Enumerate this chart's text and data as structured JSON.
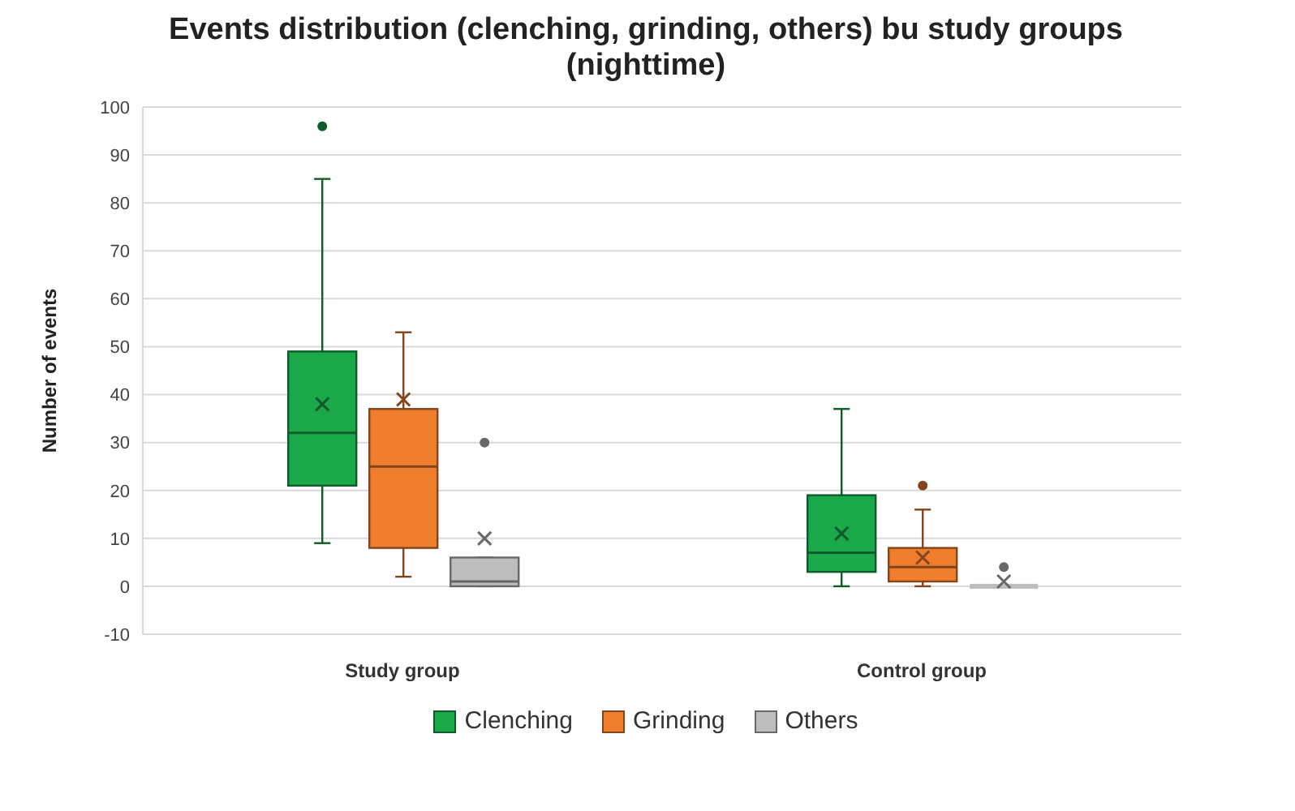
{
  "chart_data": {
    "type": "box",
    "title": "Events distribution (clenching, grinding, others) bu study groups (nighttime)",
    "ylabel": "Number of events",
    "categories": [
      "Study group",
      "Control group"
    ],
    "series": [
      {
        "name": "Clenching",
        "color": "#1aa84a",
        "boxes": [
          {
            "low": 9,
            "q1": 21,
            "median": 32,
            "q3": 49,
            "high": 85,
            "mean": 38,
            "outliers": [
              96
            ]
          },
          {
            "low": 0,
            "q1": 3,
            "median": 7,
            "q3": 19,
            "high": 37,
            "mean": 11
          }
        ]
      },
      {
        "name": "Grinding",
        "color": "#ee7d2e",
        "boxes": [
          {
            "low": 2,
            "q1": 8,
            "median": 25,
            "q3": 37,
            "high": 53,
            "mean": 39
          },
          {
            "low": 0,
            "q1": 1,
            "median": 4,
            "q3": 8,
            "high": 16,
            "mean": 6,
            "outliers": [
              21
            ]
          }
        ]
      },
      {
        "name": "Others",
        "color": "#bdbdbd",
        "boxes": [
          {
            "low": 0,
            "q1": 0,
            "median": 1,
            "q3": 6,
            "high": 6,
            "mean": 10,
            "outliers": [
              30
            ]
          },
          {
            "low": 0,
            "q1": 0,
            "median": 0,
            "q3": 0,
            "high": 0,
            "mean": 1,
            "outliers": [
              4
            ]
          }
        ]
      }
    ],
    "ylim": [
      -10,
      100
    ],
    "yticks": [
      -10,
      0,
      10,
      20,
      30,
      40,
      50,
      60,
      70,
      80,
      90,
      100
    ],
    "grid": "y",
    "legend": "bottom"
  }
}
